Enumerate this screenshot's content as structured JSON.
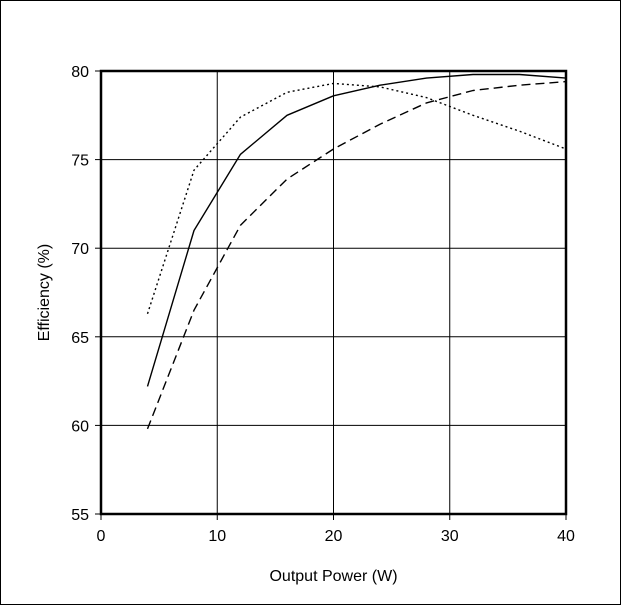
{
  "chart_data": {
    "type": "line",
    "title": "",
    "xlabel": "Output Power (W)",
    "ylabel": "Efficiency (%)",
    "xlim": [
      0,
      40
    ],
    "ylim": [
      55,
      80
    ],
    "xticks": [
      "0",
      "10",
      "20",
      "30",
      "40"
    ],
    "yticks": [
      "55",
      "60",
      "65",
      "70",
      "75",
      "80"
    ],
    "grid": true,
    "legend": "none",
    "series": [
      {
        "style": "solid",
        "x": [
          4,
          8,
          12,
          16,
          20,
          24,
          28,
          32,
          36,
          40
        ],
        "y": [
          62.2,
          71.0,
          75.3,
          77.5,
          78.6,
          79.2,
          79.6,
          79.8,
          79.8,
          79.6
        ]
      },
      {
        "style": "dotted",
        "x": [
          4,
          8,
          12,
          16,
          20,
          24,
          28,
          32,
          36,
          40
        ],
        "y": [
          66.3,
          74.4,
          77.4,
          78.8,
          79.3,
          79.1,
          78.5,
          77.5,
          76.6,
          75.6
        ]
      },
      {
        "style": "dashed",
        "x": [
          4,
          8,
          12,
          16,
          20,
          24,
          28,
          32,
          36,
          40
        ],
        "y": [
          59.8,
          66.5,
          71.3,
          73.9,
          75.6,
          77.0,
          78.2,
          78.9,
          79.2,
          79.4
        ]
      }
    ]
  }
}
